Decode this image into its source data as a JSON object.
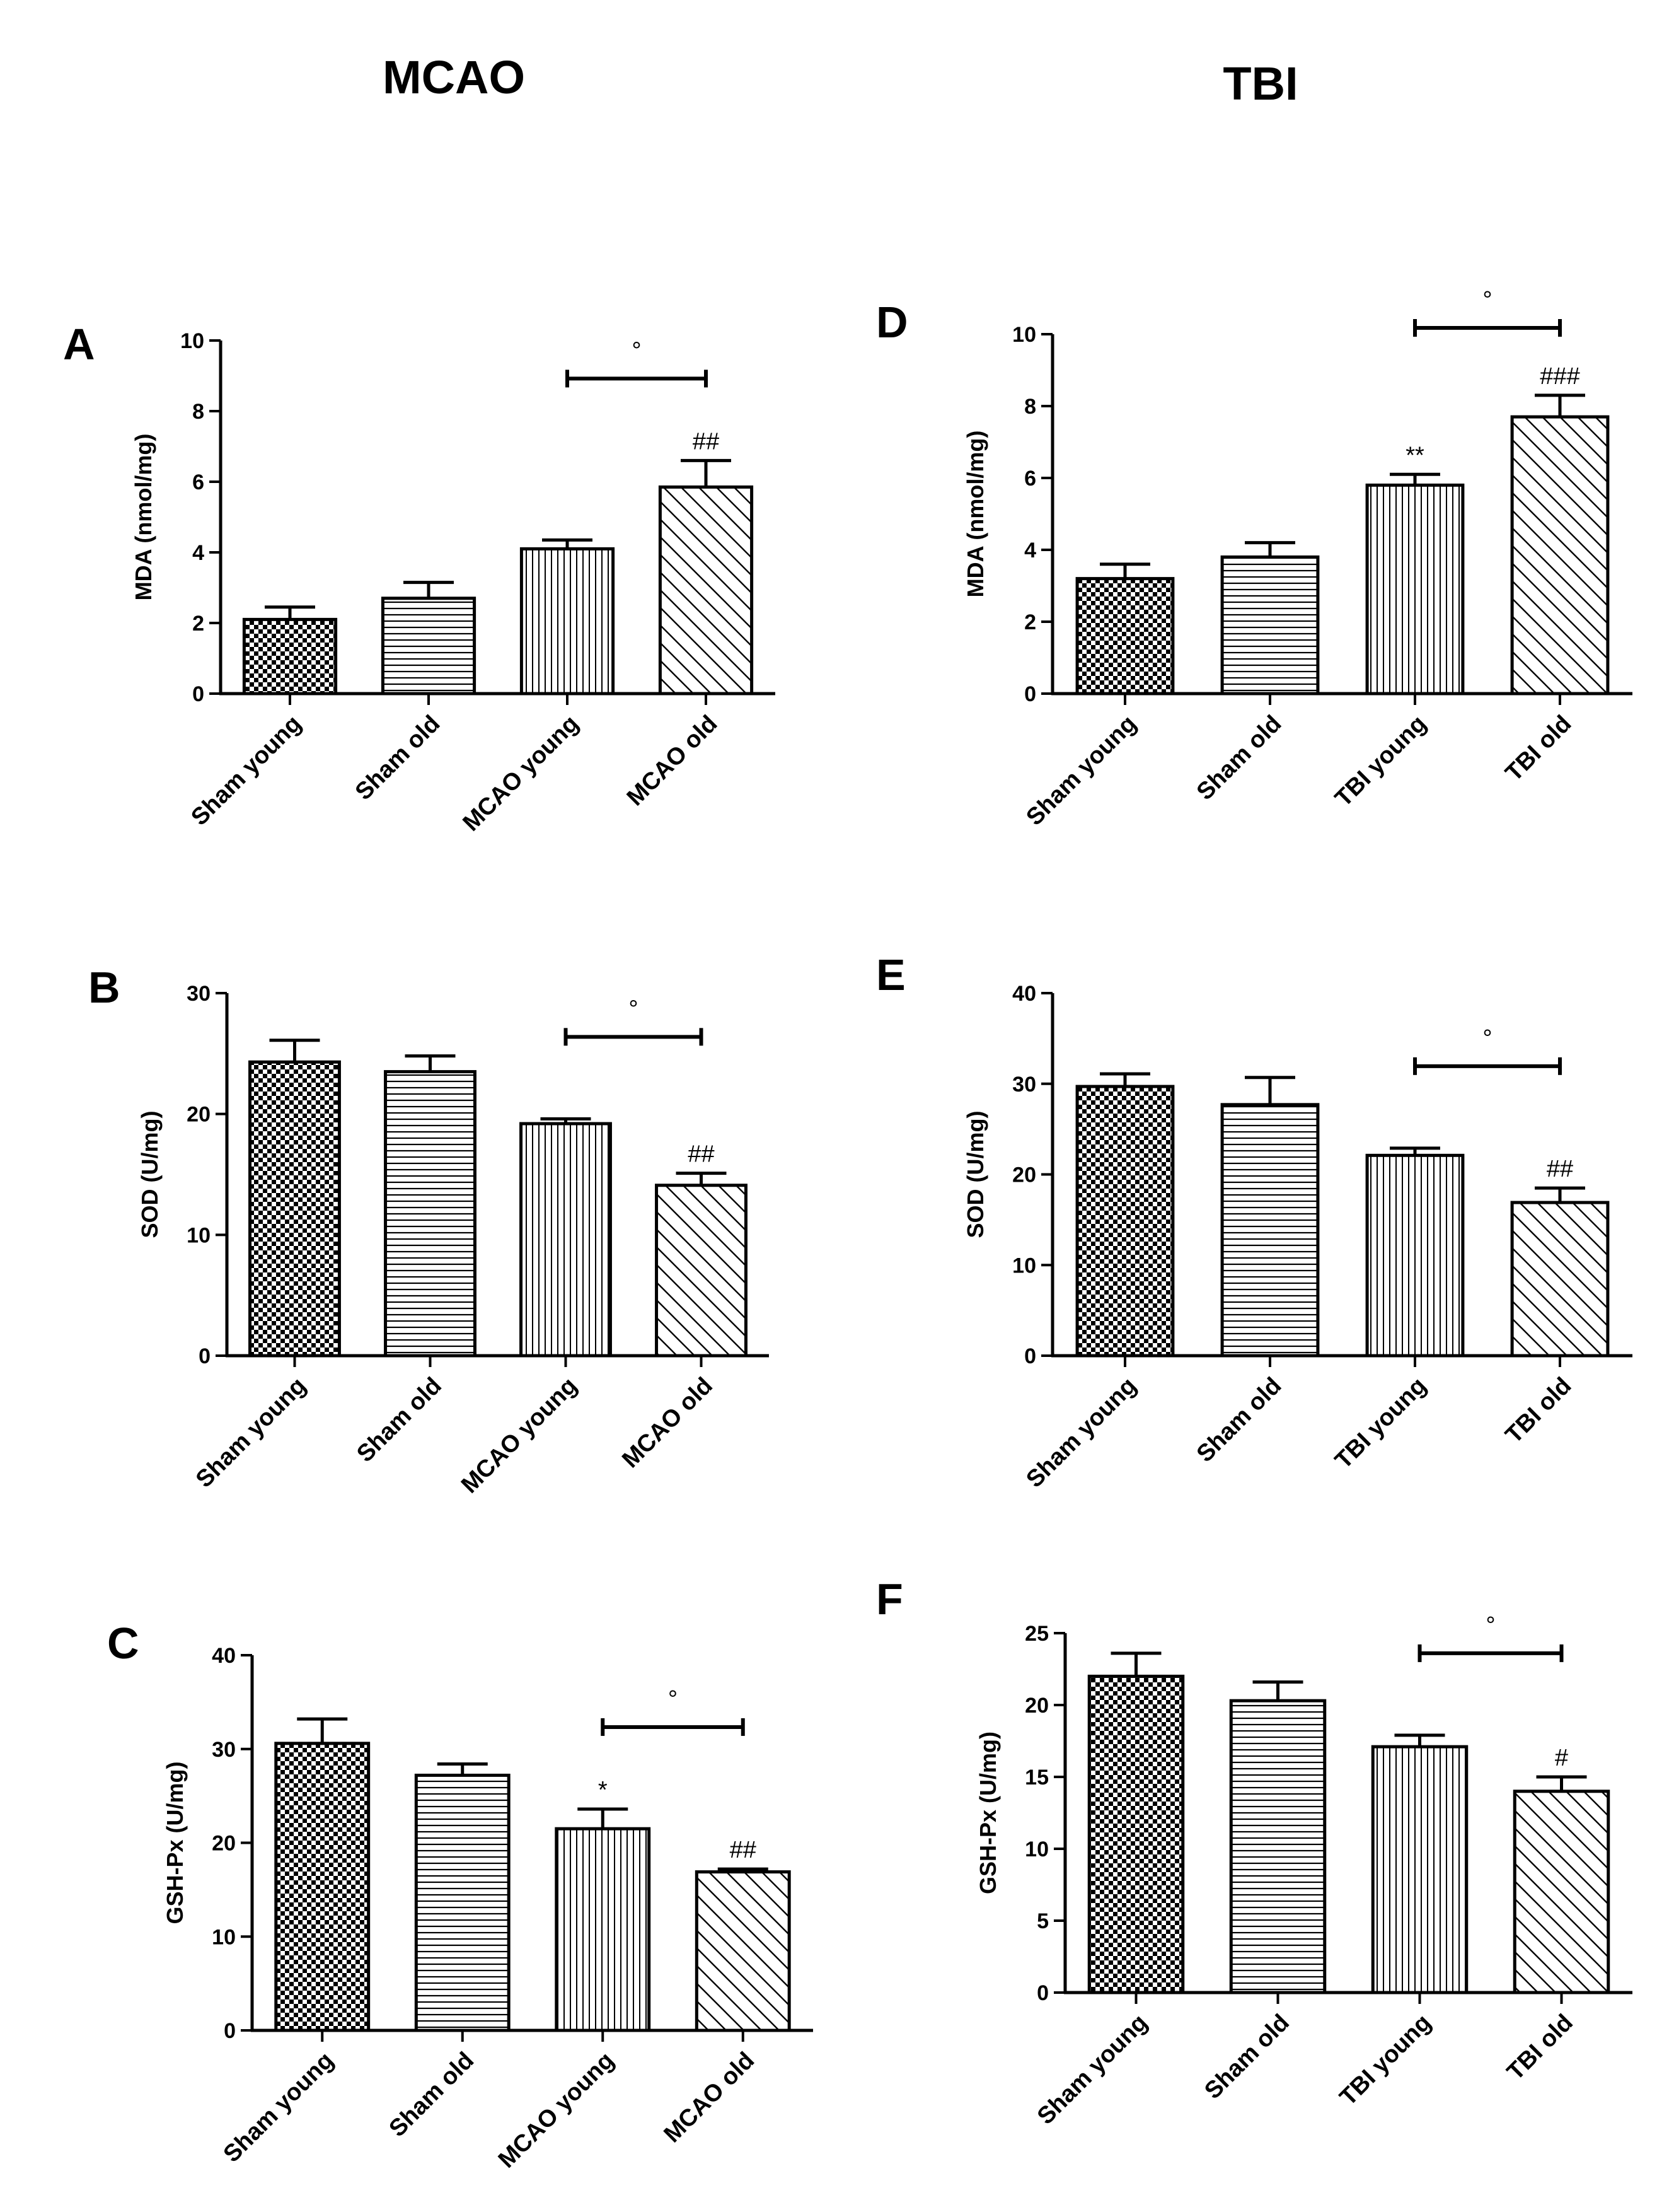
{
  "headers": {
    "left": "MCAO",
    "right": "TBI"
  },
  "chart_data": [
    {
      "panel": "A",
      "type": "bar",
      "categories": [
        "Sham young",
        "Sham old",
        "MCAO young",
        "MCAO old"
      ],
      "values": [
        2.1,
        2.7,
        4.1,
        5.85
      ],
      "errors": [
        0.35,
        0.45,
        0.25,
        0.75
      ],
      "ylabel": "MDA (nmol/mg)",
      "ylim": [
        0,
        10
      ],
      "yticks": [
        0,
        2,
        4,
        6,
        8,
        10
      ],
      "bar_labels": [
        "",
        "",
        "",
        "##"
      ],
      "bracket": {
        "from": 2,
        "to": 3,
        "label": "°"
      }
    },
    {
      "panel": "B",
      "type": "bar",
      "categories": [
        "Sham young",
        "Sham old",
        "MCAO young",
        "MCAO old"
      ],
      "values": [
        24.3,
        23.5,
        19.2,
        14.1
      ],
      "errors": [
        1.8,
        1.3,
        0.4,
        1.0
      ],
      "ylabel": "SOD (U/mg)",
      "ylim": [
        0,
        30
      ],
      "yticks": [
        0,
        10,
        20,
        30
      ],
      "bar_labels": [
        "",
        "",
        "",
        "##"
      ],
      "bracket": {
        "from": 2,
        "to": 3,
        "label": "°"
      }
    },
    {
      "panel": "C",
      "type": "bar",
      "categories": [
        "Sham young",
        "Sham old",
        "MCAO young",
        "MCAO old"
      ],
      "values": [
        30.6,
        27.2,
        21.5,
        16.9
      ],
      "errors": [
        2.6,
        1.2,
        2.1,
        0.3
      ],
      "ylabel": "GSH-Px (U/mg)",
      "ylim": [
        0,
        40
      ],
      "yticks": [
        0,
        10,
        20,
        30,
        40
      ],
      "bar_labels": [
        "",
        "",
        "*",
        "##"
      ],
      "bracket": {
        "from": 2,
        "to": 3,
        "label": "°"
      }
    },
    {
      "panel": "D",
      "type": "bar",
      "categories": [
        "Sham young",
        "Sham old",
        "TBI young",
        "TBI old"
      ],
      "values": [
        3.2,
        3.8,
        5.8,
        7.7
      ],
      "errors": [
        0.4,
        0.4,
        0.3,
        0.6
      ],
      "ylabel": "MDA (nmol/mg)",
      "ylim": [
        0,
        10
      ],
      "yticks": [
        0,
        2,
        4,
        6,
        8,
        10
      ],
      "bar_labels": [
        "",
        "",
        "**",
        "###"
      ],
      "bracket": {
        "from": 2,
        "to": 3,
        "label": "°"
      }
    },
    {
      "panel": "E",
      "type": "bar",
      "categories": [
        "Sham young",
        "Sham old",
        "TBI young",
        "TBI old"
      ],
      "values": [
        29.7,
        27.7,
        22.1,
        16.9
      ],
      "errors": [
        1.4,
        3.0,
        0.8,
        1.6
      ],
      "ylabel": "SOD (U/mg)",
      "ylim": [
        0,
        40
      ],
      "yticks": [
        0,
        10,
        20,
        30,
        40
      ],
      "bar_labels": [
        "",
        "",
        "",
        "##"
      ],
      "bracket": {
        "from": 2,
        "to": 3,
        "label": "°"
      }
    },
    {
      "panel": "F",
      "type": "bar",
      "categories": [
        "Sham young",
        "Sham old",
        "TBI young",
        "TBI old"
      ],
      "values": [
        22.0,
        20.3,
        17.1,
        14.0
      ],
      "errors": [
        1.6,
        1.3,
        0.8,
        1.0
      ],
      "ylabel": "GSH-Px (U/mg)",
      "ylim": [
        0,
        25
      ],
      "yticks": [
        0,
        5,
        10,
        15,
        20,
        25
      ],
      "bar_labels": [
        "",
        "",
        "",
        "#"
      ],
      "bracket": {
        "from": 2,
        "to": 3,
        "label": "°"
      }
    }
  ]
}
